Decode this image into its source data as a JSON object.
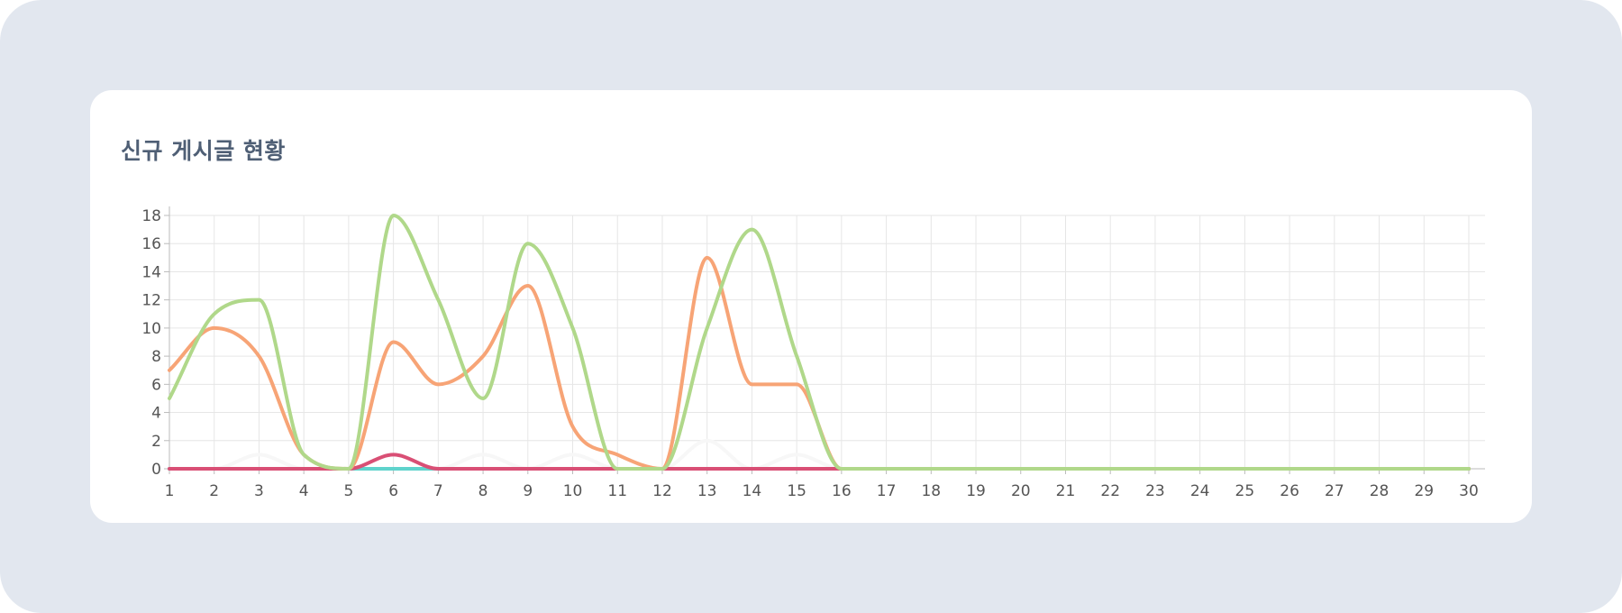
{
  "card": {
    "title": "신규 게시글 현황"
  },
  "chart_data": {
    "type": "line",
    "title": "신규 게시글 현황",
    "xlabel": "",
    "ylabel": "",
    "x": [
      1,
      2,
      3,
      4,
      5,
      6,
      7,
      8,
      9,
      10,
      11,
      12,
      13,
      14,
      15,
      16,
      17,
      18,
      19,
      20,
      21,
      22,
      23,
      24,
      25,
      26,
      27,
      28,
      29,
      30
    ],
    "ylim": [
      0,
      18
    ],
    "yticks": [
      0,
      2,
      4,
      6,
      8,
      10,
      12,
      14,
      16,
      18
    ],
    "grid": true,
    "legend": "none",
    "series": [
      {
        "color": "#f7f7f7",
        "values": [
          0,
          0,
          1,
          0,
          0,
          0,
          0,
          1,
          0,
          1,
          0,
          0,
          2,
          0,
          1,
          0,
          0,
          0,
          0,
          0,
          0,
          0,
          0,
          0,
          0,
          0,
          0,
          0,
          0,
          0
        ]
      },
      {
        "color": "#5fd3cc",
        "values": [
          0,
          0,
          0,
          0,
          0,
          0,
          0,
          0,
          0,
          0,
          0,
          0,
          0,
          0,
          0,
          0,
          0,
          0,
          0,
          0,
          0,
          0,
          0,
          0,
          0,
          0,
          0,
          0,
          0,
          0
        ]
      },
      {
        "color": "#d94f75",
        "values": [
          0,
          0,
          0,
          0,
          0,
          1,
          0,
          0,
          0,
          0,
          0,
          0,
          0,
          0,
          0,
          0,
          0,
          0,
          0,
          0,
          0,
          0,
          0,
          0,
          0,
          0,
          0,
          0,
          0,
          0
        ]
      },
      {
        "color": "#f7a476",
        "values": [
          7,
          10,
          8,
          1,
          0,
          9,
          6,
          8,
          13,
          3,
          1,
          0,
          15,
          6,
          6,
          0,
          0,
          0,
          0,
          0,
          0,
          0,
          0,
          0,
          0,
          0,
          0,
          0,
          0,
          0
        ]
      },
      {
        "color": "#b0d88a",
        "values": [
          5,
          11,
          12,
          1,
          0,
          18,
          12,
          5,
          16,
          10,
          0,
          0,
          10,
          17,
          8,
          0,
          0,
          0,
          0,
          0,
          0,
          0,
          0,
          0,
          0,
          0,
          0,
          0,
          0,
          0
        ]
      }
    ]
  }
}
